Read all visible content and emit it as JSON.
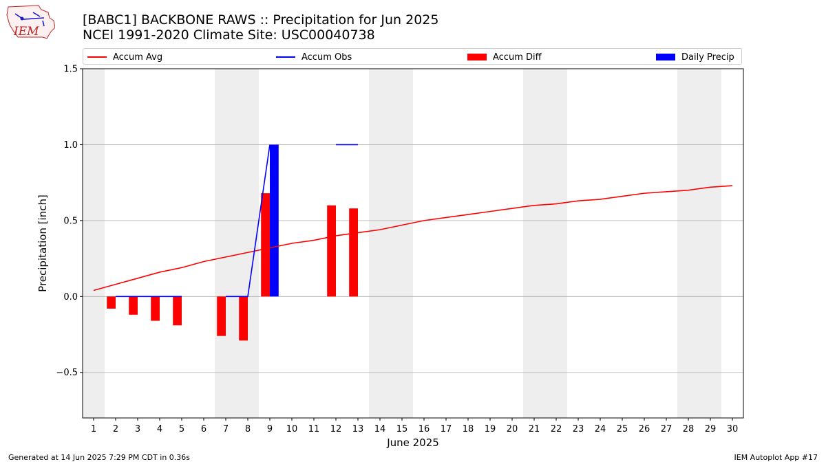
{
  "header": {
    "title_line1": "[BABC1] BACKBONE RAWS :: Precipitation for Jun 2025",
    "title_line2": "NCEI 1991-2020 Climate Site: USC00040738",
    "logo_text": "IEM"
  },
  "footer": {
    "left": "Generated at 14 Jun 2025 7:29 PM CDT in 0.36s",
    "right": "IEM Autoplot App #17"
  },
  "legend": [
    {
      "label": "Accum Avg",
      "kind": "line",
      "color": "#ff0000"
    },
    {
      "label": "Accum Obs",
      "kind": "line",
      "color": "#0000ff"
    },
    {
      "label": "Accum Diff",
      "kind": "box",
      "color": "#ff0000"
    },
    {
      "label": "Daily Precip",
      "kind": "box",
      "color": "#0000ff"
    }
  ],
  "chart_data": {
    "type": "bar",
    "xlabel": "June 2025",
    "ylabel": "Precipitation [inch]",
    "xlim": [
      0.5,
      30.5
    ],
    "ylim": [
      -0.8,
      1.5
    ],
    "x_ticks": [
      "1",
      "2",
      "3",
      "4",
      "5",
      "6",
      "7",
      "8",
      "9",
      "10",
      "11",
      "12",
      "13",
      "14",
      "15",
      "16",
      "17",
      "18",
      "19",
      "20",
      "21",
      "22",
      "23",
      "24",
      "25",
      "26",
      "27",
      "28",
      "29",
      "30"
    ],
    "y_ticks": [
      -0.5,
      0.0,
      0.5,
      1.0,
      1.5
    ],
    "y_tick_labels": [
      "−0.5",
      "0.0",
      "0.5",
      "1.0",
      "1.5"
    ],
    "grid": "horizontal",
    "legend_position": "top",
    "weekend_shading": [
      [
        0.5,
        1.5
      ],
      [
        6.5,
        8.5
      ],
      [
        13.5,
        15.5
      ],
      [
        20.5,
        22.5
      ],
      [
        27.5,
        29.5
      ]
    ],
    "series": [
      {
        "name": "Accum Avg",
        "kind": "line",
        "color": "#ff0000",
        "x": [
          1,
          2,
          3,
          4,
          5,
          6,
          7,
          8,
          9,
          10,
          11,
          12,
          13,
          14,
          15,
          16,
          17,
          18,
          19,
          20,
          21,
          22,
          23,
          24,
          25,
          26,
          27,
          28,
          29,
          30
        ],
        "values": [
          0.04,
          0.08,
          0.12,
          0.16,
          0.19,
          0.23,
          0.26,
          0.29,
          0.32,
          0.35,
          0.37,
          0.4,
          0.42,
          0.44,
          0.47,
          0.5,
          0.52,
          0.54,
          0.56,
          0.58,
          0.6,
          0.61,
          0.63,
          0.64,
          0.66,
          0.68,
          0.69,
          0.7,
          0.72,
          0.73
        ]
      },
      {
        "name": "Accum Obs",
        "kind": "line",
        "color": "#0000ff",
        "segments": [
          {
            "x": [
              2,
              3,
              4,
              5
            ],
            "values": [
              0,
              0,
              0,
              0
            ]
          },
          {
            "x": [
              7,
              8,
              9
            ],
            "values": [
              0,
              0,
              1.0
            ]
          },
          {
            "x": [
              12,
              13
            ],
            "values": [
              1.0,
              1.0
            ]
          }
        ]
      },
      {
        "name": "Accum Diff",
        "kind": "bar",
        "color": "#ff0000",
        "x": [
          2,
          3,
          4,
          5,
          7,
          8,
          9,
          12,
          13
        ],
        "values": [
          -0.08,
          -0.12,
          -0.16,
          -0.19,
          -0.26,
          -0.29,
          0.68,
          0.6,
          0.58
        ]
      },
      {
        "name": "Daily Precip",
        "kind": "bar",
        "color": "#0000ff",
        "x": [
          9
        ],
        "values": [
          1.0
        ]
      }
    ]
  }
}
